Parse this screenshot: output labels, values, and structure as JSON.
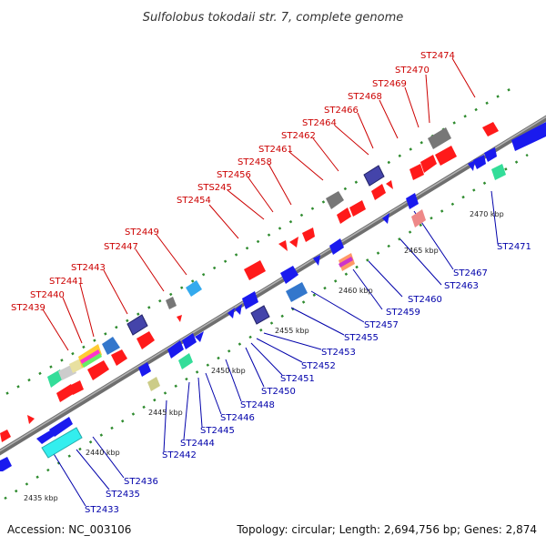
{
  "title": "Sulfolobus tokodaii str. 7, complete genome",
  "accession": "Accession: NC_003106",
  "summary": "Topology: circular; Length: 2,694,756 bp; Genes: 2,874",
  "colors": {
    "forward_label": "#cc0000",
    "reverse_label": "#0000aa",
    "backbone": "#8a8a8a",
    "ticks": "#2e8b2e"
  },
  "scale_labels": [
    "2435 kbp",
    "2440 kbp",
    "2445 kbp",
    "2450 kbp",
    "2455 kbp",
    "2460 kbp",
    "2465 kbp",
    "2470 kbp"
  ],
  "top_labels": [
    "ST2439",
    "ST2440",
    "ST2441",
    "ST2443",
    "ST2447",
    "ST2449",
    "ST2454",
    "STS245",
    "ST2456",
    "ST2458",
    "ST2461",
    "ST2462",
    "ST2464",
    "ST2466",
    "ST2468",
    "ST2469",
    "ST2470",
    "ST2474"
  ],
  "bottom_labels": [
    "ST2433",
    "ST2435",
    "ST2436",
    "ST2442",
    "ST2444",
    "ST2445",
    "ST2446",
    "ST2448",
    "ST2450",
    "ST2451",
    "ST2452",
    "ST2453",
    "ST2455",
    "ST2457",
    "ST2459",
    "ST2460",
    "ST2463",
    "ST2467",
    "ST2471"
  ]
}
